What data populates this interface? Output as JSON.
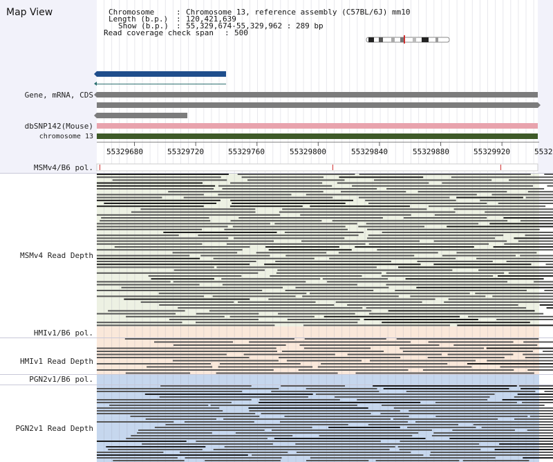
{
  "app": {
    "title": "Map View"
  },
  "info": {
    "chromosome_label": "Chromosome",
    "chromosome_value": "Chromosome 13, reference assembly (C57BL/6J) mm10",
    "length_label": "Length (b.p.)",
    "length_value": "120,421,639",
    "show_label": "Show (b.p.)",
    "show_value": "55,329,674-55,329,962 : 289 bp",
    "coverage_label": "Read coverage check span",
    "coverage_value": "500"
  },
  "tracks": {
    "gene": "Gene, mRNA, CDS",
    "dbsnp": "dbSNP142(Mouse)",
    "chromosome": "chromosome 13",
    "msm_pol": "MSMv4/B6 pol.",
    "msm_depth": "MSMv4 Read Depth",
    "hmi_pol": "HMIv1/B6 pol.",
    "hmi_depth": "HMIv1 Read Depth",
    "pgn_pol": "PGN2v1/B6 pol.",
    "pgn_depth": "PGN2v1 Read Depth"
  },
  "ruler": {
    "ticks": [
      "55329680",
      "55329720",
      "55329760",
      "55329800",
      "55329840",
      "55329880",
      "55329920",
      "5532"
    ]
  },
  "colors": {
    "gene_blue": "#1f4e8c",
    "gray_bar": "#7c7c7c",
    "snp_pink": "#e8a3ad",
    "chrom_green": "#3e5a28",
    "msm_bg": "#edf1e3",
    "hmi_bg": "#fae8da",
    "pgn_bg": "#c6d7ee",
    "pol_red": "#d03030"
  }
}
